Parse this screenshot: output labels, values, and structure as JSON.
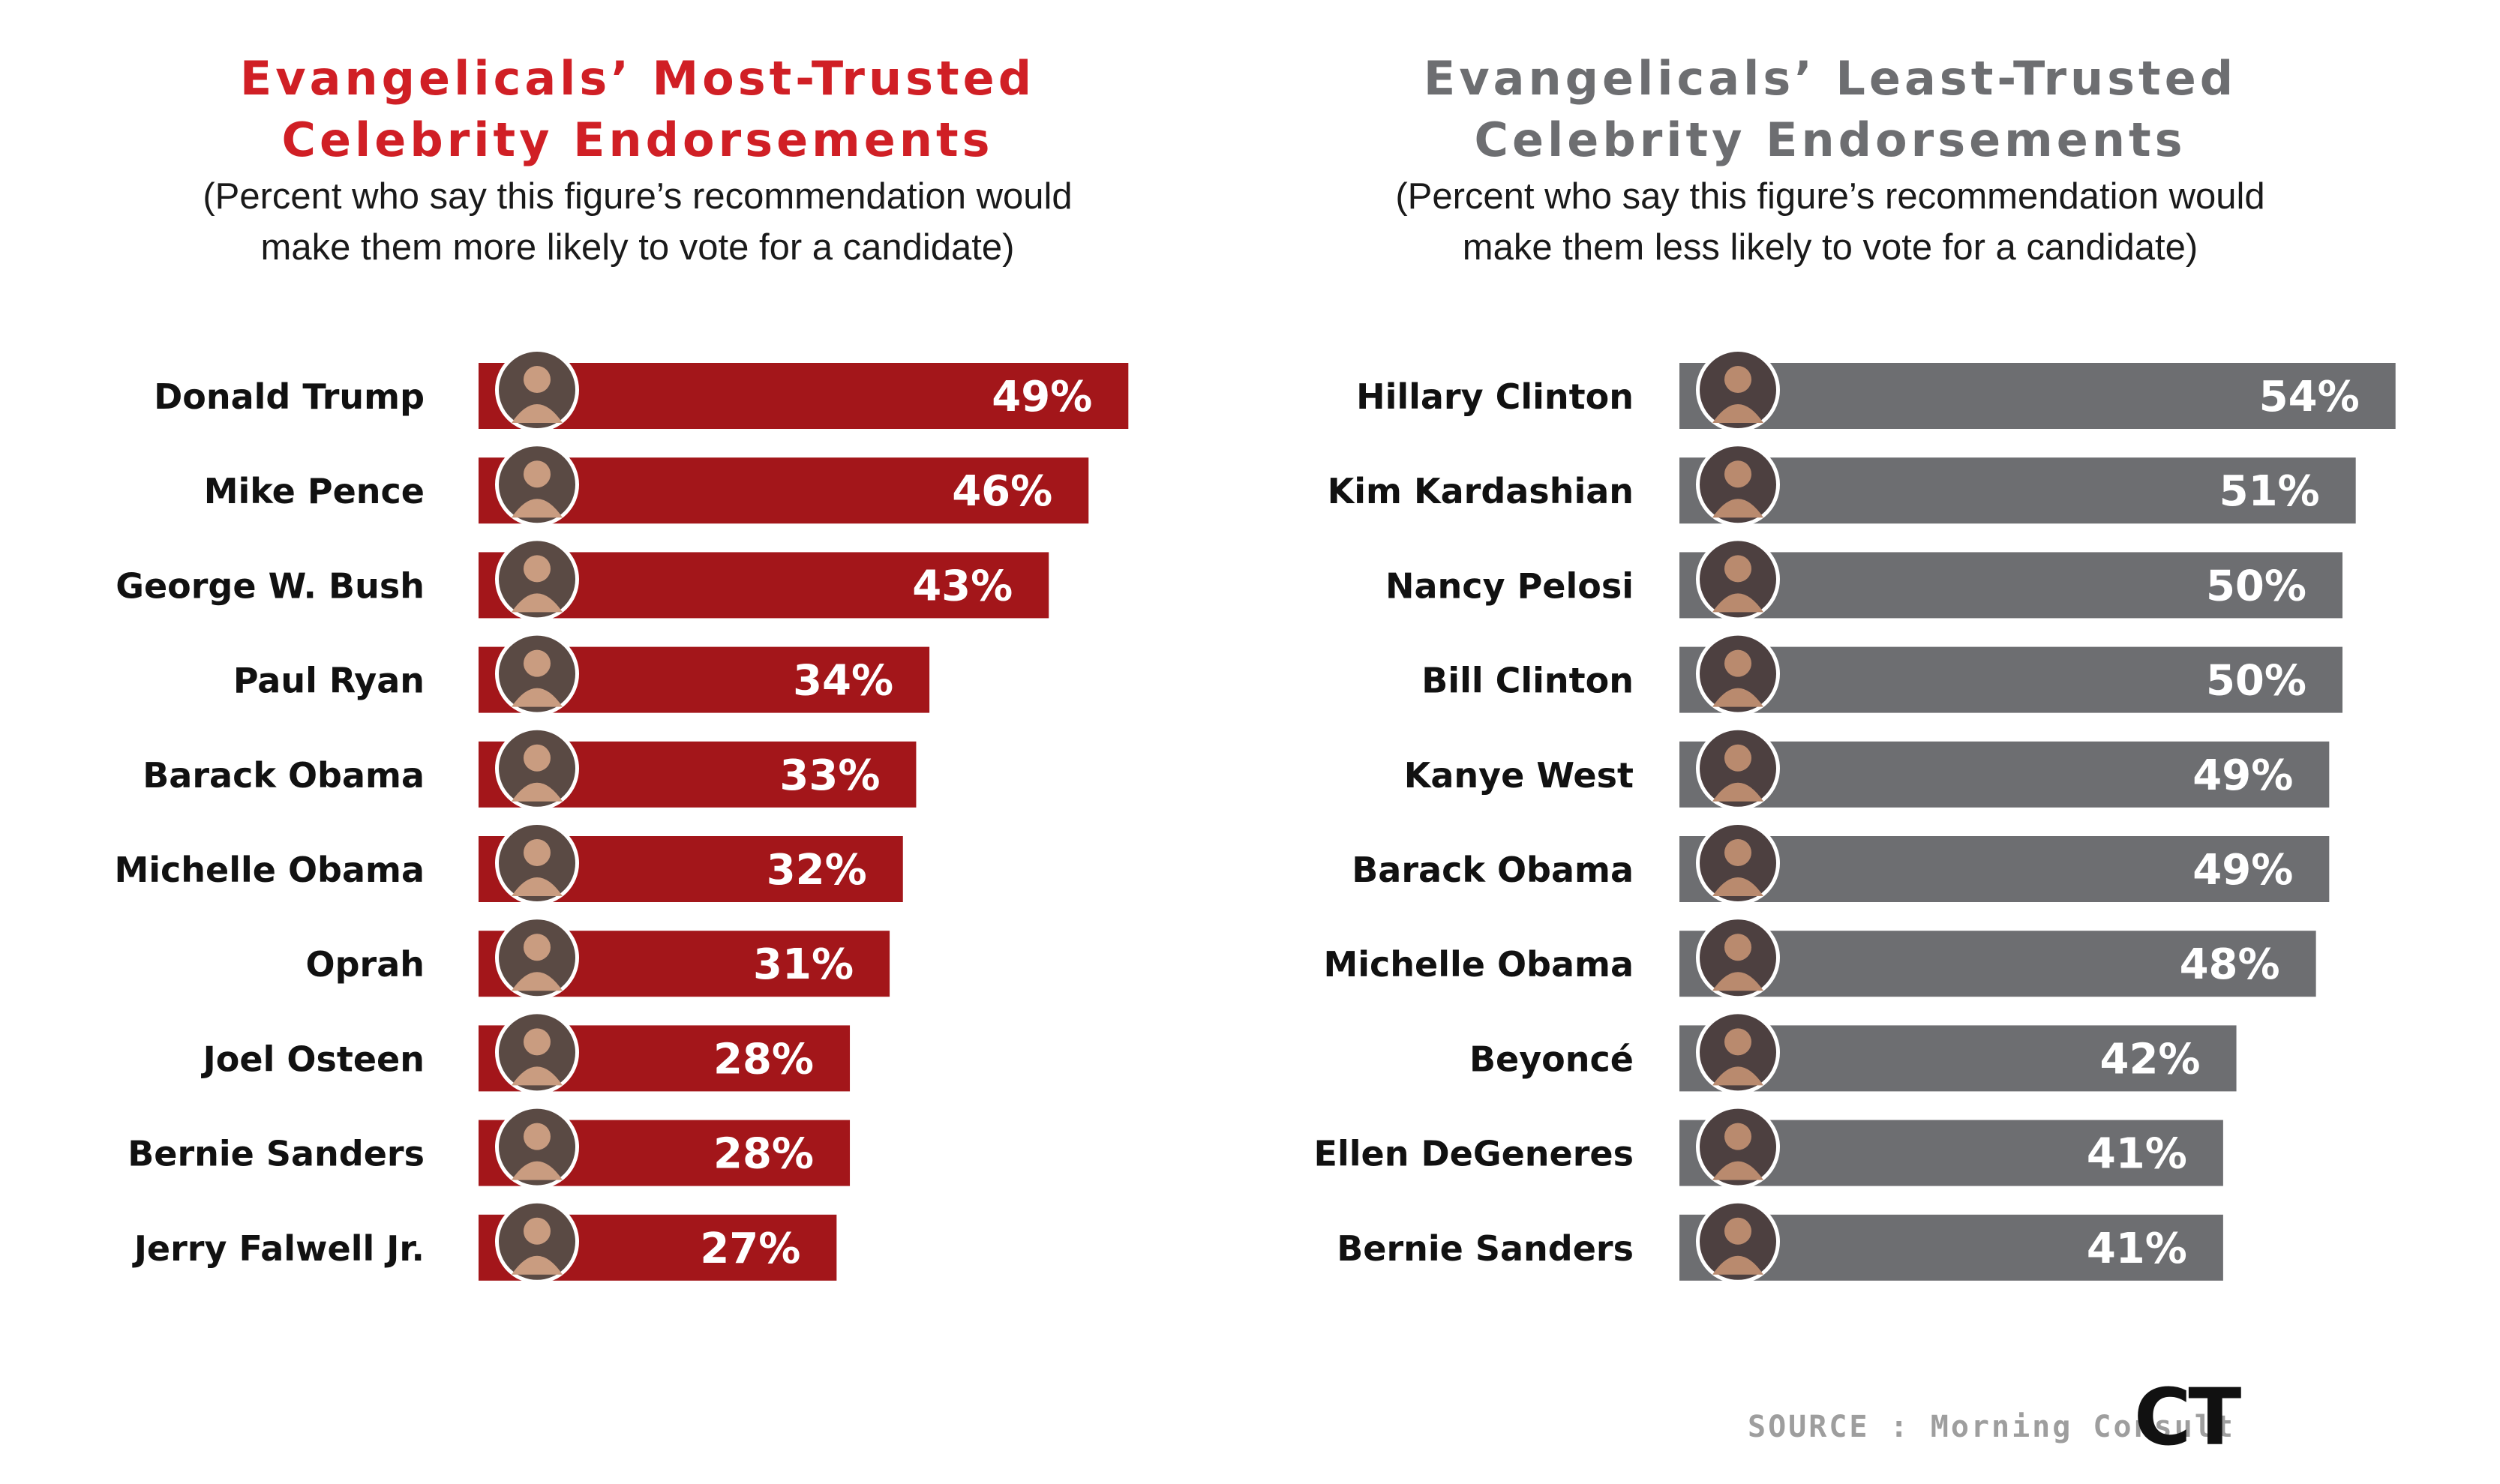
{
  "colors": {
    "left_title": "#d01f25",
    "right_title": "#6d6e71",
    "left_bar": "#a3161a",
    "right_bar": "#6d6e71",
    "label": "#111111",
    "value_text": "#ffffff"
  },
  "left": {
    "title_line1": "Evangelicals’ Most-Trusted",
    "title_line2": "Celebrity Endorsements",
    "subtitle_line1": "(Percent who say this figure’s recommendation would",
    "subtitle_line2": "make them more likely to vote for a candidate)"
  },
  "right": {
    "title_line1": "Evangelicals’ Least-Trusted",
    "title_line2": "Celebrity Endorsements",
    "subtitle_line1": "(Percent who say this figure’s recommendation would",
    "subtitle_line2": "make them less likely to vote for a candidate)"
  },
  "chart_data": [
    {
      "type": "bar",
      "orientation": "horizontal",
      "title": "Evangelicals’ Most-Trusted Celebrity Endorsements",
      "subtitle": "(Percent who say this figure’s recommendation would make them more likely to vote for a candidate)",
      "categories": [
        "Donald Trump",
        "Mike Pence",
        "George W. Bush",
        "Paul Ryan",
        "Barack Obama",
        "Michelle Obama",
        "Oprah",
        "Joel Osteen",
        "Bernie Sanders",
        "Jerry Falwell Jr."
      ],
      "values": [
        49,
        46,
        43,
        34,
        33,
        32,
        31,
        28,
        28,
        27
      ],
      "labels": [
        "49%",
        "46%",
        "43%",
        "34%",
        "33%",
        "32%",
        "31%",
        "28%",
        "28%",
        "27%"
      ],
      "unit": "%"
    },
    {
      "type": "bar",
      "orientation": "horizontal",
      "title": "Evangelicals’ Least-Trusted Celebrity Endorsements",
      "subtitle": "(Percent who say this figure’s recommendation would make them less likely to vote for a candidate)",
      "categories": [
        "Hillary Clinton",
        "Kim Kardashian",
        "Nancy Pelosi",
        "Bill Clinton",
        "Kanye West",
        "Barack Obama",
        "Michelle Obama",
        "Beyoncé",
        "Ellen DeGeneres",
        "Bernie Sanders"
      ],
      "values": [
        54,
        51,
        50,
        50,
        49,
        49,
        48,
        42,
        41,
        41
      ],
      "labels": [
        "54%",
        "51%",
        "50%",
        "50%",
        "49%",
        "49%",
        "48%",
        "42%",
        "41%",
        "41%"
      ],
      "unit": "%"
    }
  ],
  "footer": {
    "source": "SOURCE : Morning Consult",
    "logo_text": "CT"
  }
}
